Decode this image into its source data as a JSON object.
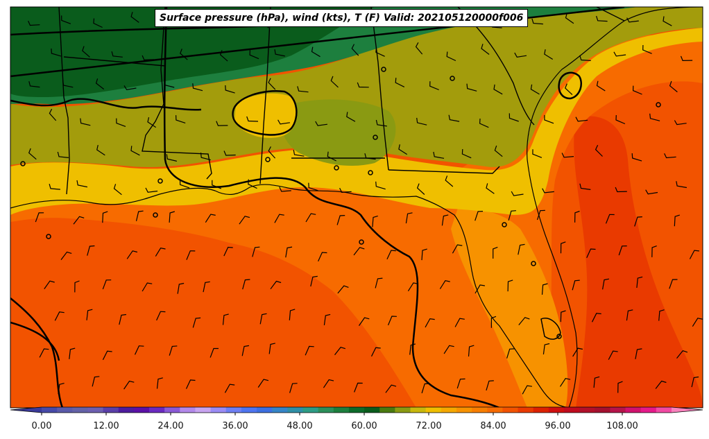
{
  "title": "Surface pressure (hPa), wind (kts), T (F) Valid: 202105120000f006",
  "colorbar": {
    "tick_labels": [
      "0.00",
      "12.00",
      "24.00",
      "36.00",
      "48.00",
      "60.00",
      "72.00",
      "84.00",
      "96.00",
      "108.00"
    ],
    "tick_values": [
      0,
      12,
      24,
      36,
      48,
      60,
      72,
      84,
      96,
      108
    ],
    "vmin": -6,
    "vmax": 120,
    "step": 3,
    "colors": [
      "#3a3a9a",
      "#474aa8",
      "#5a5aa9",
      "#6462a7",
      "#6d5fb0",
      "#5a3fa8",
      "#4d1c9d",
      "#5b10a6",
      "#6a2ac0",
      "#8a5ad6",
      "#b389ea",
      "#c8a4f0",
      "#9b8cf5",
      "#6f7ff3",
      "#4f75f0",
      "#3d6fe0",
      "#3685c7",
      "#2f8fa6",
      "#2e9c85",
      "#2c8f5a",
      "#1d7f3e",
      "#0d6b2a",
      "#0a5c1c",
      "#4a7a10",
      "#8a9a12",
      "#c8b80d",
      "#efbf00",
      "#f5a800",
      "#f79200",
      "#f87e00",
      "#f76b00",
      "#f25300",
      "#e93a00",
      "#dc2200",
      "#cf0f0f",
      "#bf0b1e",
      "#b0102a",
      "#a3102f",
      "#b5144a",
      "#d0126e",
      "#e51a8a",
      "#f14aa3",
      "#f882bd"
    ]
  },
  "map_colors": {
    "deep_green": "#0a5c1c",
    "green": "#1d7f3e",
    "mid_green": "#3f7a1a",
    "olive": "#a39c0c",
    "yellow": "#efbf00",
    "orange": "#f79200",
    "dark_orange": "#f76b00",
    "red_orange": "#f25300",
    "red": "#e93a00",
    "border_color": "#000000"
  },
  "station_markers": "circle",
  "wind_barbs": "black barbs across domain"
}
